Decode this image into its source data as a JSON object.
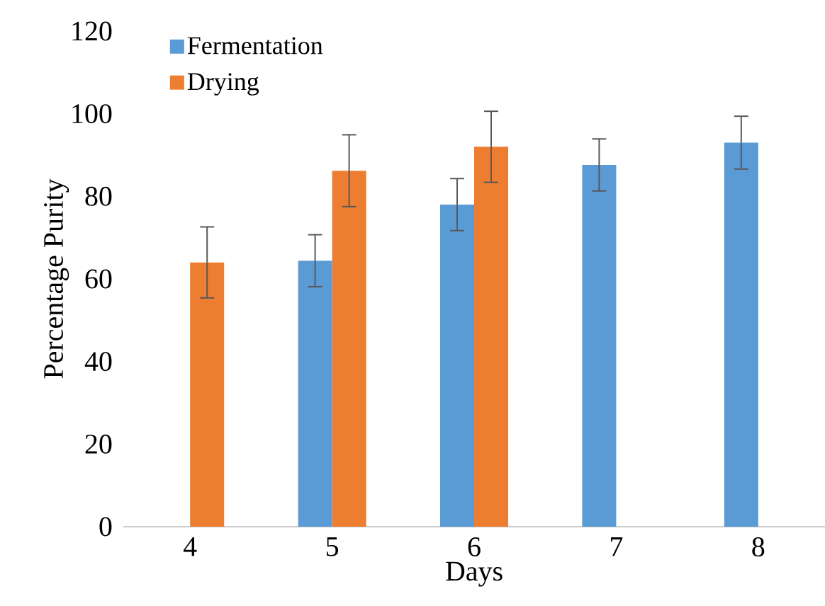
{
  "chart_data": {
    "type": "bar",
    "xlabel": "Days",
    "ylabel": "Percentage Purity",
    "categories": [
      "4",
      "5",
      "6",
      "7",
      "8"
    ],
    "series": [
      {
        "name": "Fermentation",
        "color": "#5b9bd5",
        "values": [
          null,
          64.4,
          78.0,
          87.6,
          93.0
        ],
        "errors": [
          null,
          6.3,
          6.3,
          6.3,
          6.4
        ]
      },
      {
        "name": "Drying",
        "color": "#ed7d31",
        "values": [
          64.0,
          86.2,
          92.0,
          null,
          null
        ],
        "errors": [
          8.6,
          8.7,
          8.6,
          null,
          null
        ]
      }
    ],
    "ylim": [
      0,
      120
    ],
    "yticks": [
      0,
      20,
      40,
      60,
      80,
      100,
      120
    ],
    "legend": "top left"
  }
}
